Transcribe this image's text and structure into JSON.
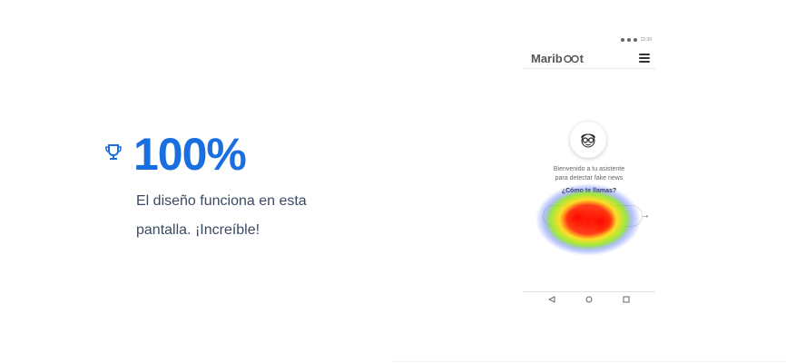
{
  "stat": {
    "value": "100%",
    "icon": "trophy-icon",
    "description_line1": "El diseño funciona en esta",
    "description_line2": "pantalla. ¡Increíble!"
  },
  "phone": {
    "status_time": "12:30",
    "brand_left": "Marib",
    "brand_right": "t",
    "welcome_line1": "Bienvenido a tu asistente",
    "welcome_line2": "para detectar fake news",
    "question": "¿Cómo te llamas?",
    "send_icon": "→"
  },
  "colors": {
    "accent": "#1a6fe0",
    "text": "#3b4a63"
  }
}
